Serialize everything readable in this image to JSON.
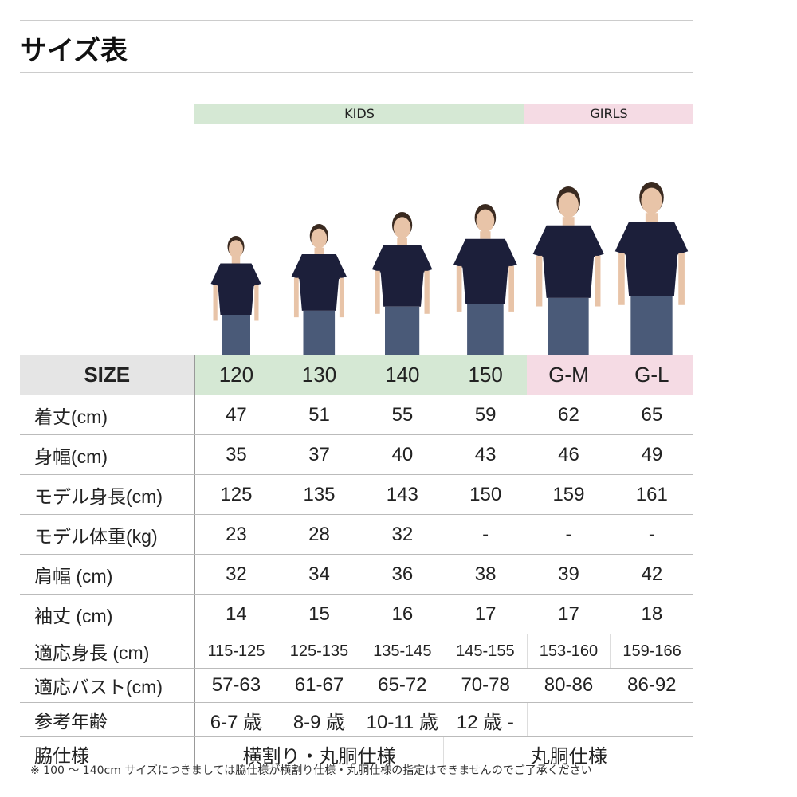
{
  "title": "サイズ表",
  "bands": {
    "kids": "KIDS",
    "girls": "GIRLS",
    "kids_color": "#d5e8d4",
    "girls_color": "#f5dbe4"
  },
  "table": {
    "header": {
      "label": "SIZE",
      "sizes": [
        "120",
        "130",
        "140",
        "150",
        "G-M",
        "G-L"
      ]
    },
    "rows": [
      {
        "label": "着丈(cm)",
        "values": [
          "47",
          "51",
          "55",
          "59",
          "62",
          "65"
        ]
      },
      {
        "label": "身幅(cm)",
        "values": [
          "35",
          "37",
          "40",
          "43",
          "46",
          "49"
        ]
      },
      {
        "label": "モデル身長(cm)",
        "values": [
          "125",
          "135",
          "143",
          "150",
          "159",
          "161"
        ]
      },
      {
        "label": "モデル体重(kg)",
        "values": [
          "23",
          "28",
          "32",
          "-",
          "-",
          "-"
        ]
      },
      {
        "label": "肩幅 (cm)",
        "values": [
          "32",
          "34",
          "36",
          "38",
          "39",
          "42"
        ]
      },
      {
        "label": "袖丈 (cm)",
        "values": [
          "14",
          "15",
          "16",
          "17",
          "17",
          "18"
        ]
      },
      {
        "label": "適応身長 (cm)",
        "values": [
          "115-125",
          "125-135",
          "135-145",
          "145-155",
          "153-160",
          "159-166"
        ]
      },
      {
        "label": "適応バスト(cm)",
        "values": [
          "57-63",
          "61-67",
          "65-72",
          "70-78",
          "80-86",
          "86-92"
        ]
      },
      {
        "label": "参考年齢",
        "values": [
          "6-7 歳",
          "8-9 歳",
          "10-11 歳",
          "12 歳 -",
          ""
        ]
      },
      {
        "label": "脇仕様",
        "values": [
          "横割り・丸胴仕様",
          "丸胴仕様"
        ]
      }
    ]
  },
  "note": "※ 100 〜 140cm サイズにつきましては脇仕様が横割り仕様・丸胴仕様の指定はできませんのでご了承ください"
}
